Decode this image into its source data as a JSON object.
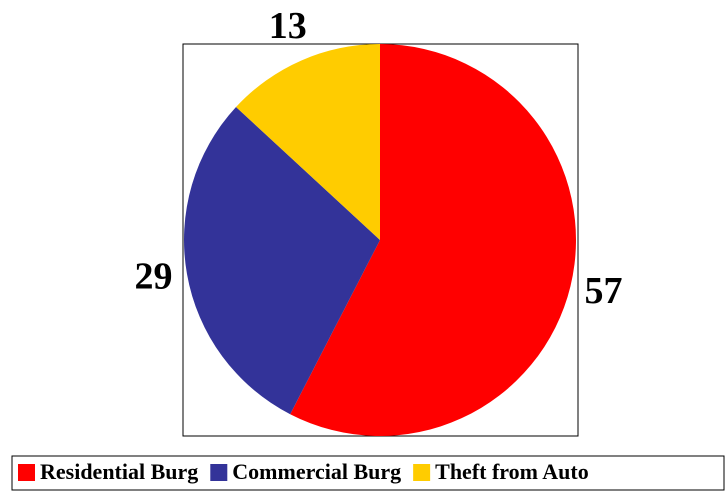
{
  "chart_data": {
    "type": "pie",
    "categories": [
      "Residential Burg",
      "Commercial Burg",
      "Theft from Auto"
    ],
    "values": [
      57,
      29,
      13
    ],
    "colors": [
      "#ff0000",
      "#333399",
      "#ffcc00"
    ],
    "legend": "bottom"
  }
}
